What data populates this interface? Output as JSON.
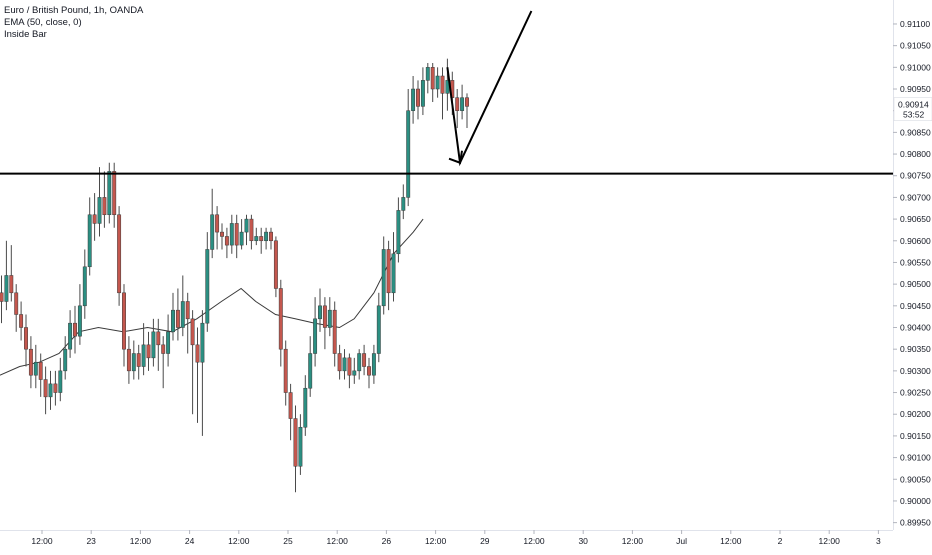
{
  "header": {
    "symbol_line": "Euro / British Pound, 1h, OANDA",
    "indicator_line": "EMA (50, close, 0)",
    "study_line": "Inside Bar"
  },
  "colors": {
    "up": "#26a69a",
    "down": "#ef5350",
    "up_body": "#2b8f82",
    "down_body": "#c4574e",
    "ema": "#3a3a3a",
    "level": "#000000",
    "axis_text": "#131722",
    "axis_line": "#e0e3eb"
  },
  "chart_data": {
    "type": "candlestick",
    "title": "Euro / British Pound, 1h, OANDA",
    "ylim": [
      0.8993,
      0.9112
    ],
    "x_ticks": [
      {
        "x": 0,
        "label": "12:00"
      },
      {
        "x": 1,
        "label": "23"
      },
      {
        "x": 2,
        "label": "12:00"
      },
      {
        "x": 3,
        "label": "24"
      },
      {
        "x": 4,
        "label": "12:00"
      },
      {
        "x": 5,
        "label": "25"
      },
      {
        "x": 6,
        "label": "12:00"
      },
      {
        "x": 7,
        "label": "26"
      },
      {
        "x": 8,
        "label": "12:00"
      },
      {
        "x": 9,
        "label": "29"
      },
      {
        "x": 10,
        "label": "12:00"
      },
      {
        "x": 11,
        "label": "30"
      },
      {
        "x": 12,
        "label": "12:00"
      },
      {
        "x": 13,
        "label": "Jul"
      },
      {
        "x": 14,
        "label": "12:00"
      },
      {
        "x": 15,
        "label": "2"
      },
      {
        "x": 16,
        "label": "12:00"
      },
      {
        "x": 17,
        "label": "3"
      }
    ],
    "y_ticks": [
      "0.91100",
      "0.91050",
      "0.91000",
      "0.90950",
      "0.90900",
      "0.90850",
      "0.90800",
      "0.90750",
      "0.90700",
      "0.90650",
      "0.90600",
      "0.90550",
      "0.90500",
      "0.90450",
      "0.90400",
      "0.90350",
      "0.90300",
      "0.90250",
      "0.90200",
      "0.90150",
      "0.90100",
      "0.90050",
      "0.90000",
      "0.89950"
    ],
    "current_price": {
      "value": 0.90914,
      "label": "0.90914",
      "countdown": "53:52"
    },
    "level": {
      "value": 0.90755,
      "label": "0.90755"
    },
    "ema": [
      [
        0,
        0.9029
      ],
      [
        0.4,
        0.9031
      ],
      [
        0.8,
        0.9032
      ],
      [
        1.2,
        0.9034
      ],
      [
        1.6,
        0.9039
      ],
      [
        2.0,
        0.904
      ],
      [
        2.5,
        0.9039
      ],
      [
        3.0,
        0.904
      ],
      [
        3.5,
        0.9039
      ],
      [
        4.0,
        0.9042
      ],
      [
        4.5,
        0.9046
      ],
      [
        4.9,
        0.9049
      ],
      [
        5.2,
        0.9046
      ],
      [
        5.6,
        0.9043
      ],
      [
        6.0,
        0.9042
      ],
      [
        6.4,
        0.9041
      ],
      [
        6.9,
        0.904
      ],
      [
        7.2,
        0.9042
      ],
      [
        7.6,
        0.9048
      ],
      [
        8.0,
        0.9057
      ],
      [
        8.4,
        0.9062
      ],
      [
        8.6,
        0.9065
      ]
    ],
    "projection": [
      [
        8.15,
        0.91
      ],
      [
        9.35,
        0.9078
      ],
      [
        10.8,
        0.9113
      ]
    ],
    "candles": [
      [
        0.9048,
        0.9046,
        0.9052,
        0.9041
      ],
      [
        0.9046,
        0.9052,
        0.906,
        0.9044
      ],
      [
        0.9052,
        0.9048,
        0.9059,
        0.9046
      ],
      [
        0.9048,
        0.9043,
        0.905,
        0.9039
      ],
      [
        0.9043,
        0.904,
        0.9046,
        0.9037
      ],
      [
        0.904,
        0.9035,
        0.9043,
        0.9031
      ],
      [
        0.9035,
        0.9029,
        0.9038,
        0.9026
      ],
      [
        0.9029,
        0.9032,
        0.9036,
        0.9026
      ],
      [
        0.9032,
        0.9028,
        0.9034,
        0.9024
      ],
      [
        0.9028,
        0.9024,
        0.9031,
        0.902
      ],
      [
        0.9024,
        0.9027,
        0.903,
        0.9021
      ],
      [
        0.9027,
        0.9025,
        0.903,
        0.9022
      ],
      [
        0.9025,
        0.903,
        0.9033,
        0.9023
      ],
      [
        0.903,
        0.9035,
        0.9038,
        0.9028
      ],
      [
        0.9035,
        0.9041,
        0.9044,
        0.9033
      ],
      [
        0.9041,
        0.9038,
        0.9045,
        0.9034
      ],
      [
        0.9038,
        0.9045,
        0.905,
        0.9036
      ],
      [
        0.9045,
        0.9054,
        0.9058,
        0.9042
      ],
      [
        0.9054,
        0.9066,
        0.907,
        0.9052
      ],
      [
        0.9066,
        0.9064,
        0.9071,
        0.906
      ],
      [
        0.9064,
        0.907,
        0.9077,
        0.9061
      ],
      [
        0.907,
        0.9066,
        0.9076,
        0.9063
      ],
      [
        0.9066,
        0.9076,
        0.9078,
        0.9064
      ],
      [
        0.9076,
        0.9066,
        0.9078,
        0.9063
      ],
      [
        0.9066,
        0.9048,
        0.9068,
        0.9045
      ],
      [
        0.9048,
        0.9035,
        0.905,
        0.9031
      ],
      [
        0.9035,
        0.903,
        0.9038,
        0.9027
      ],
      [
        0.903,
        0.9034,
        0.9037,
        0.9028
      ],
      [
        0.9034,
        0.9031,
        0.9036,
        0.9028
      ],
      [
        0.9031,
        0.9036,
        0.9041,
        0.9029
      ],
      [
        0.9036,
        0.9033,
        0.9039,
        0.903
      ],
      [
        0.9033,
        0.9039,
        0.9042,
        0.9031
      ],
      [
        0.9039,
        0.9036,
        0.9042,
        0.903
      ],
      [
        0.9036,
        0.9034,
        0.9038,
        0.9026
      ],
      [
        0.9034,
        0.9039,
        0.9043,
        0.9031
      ],
      [
        0.9039,
        0.9044,
        0.9048,
        0.9037
      ],
      [
        0.9044,
        0.904,
        0.9049,
        0.9037
      ],
      [
        0.904,
        0.9046,
        0.9052,
        0.9038
      ],
      [
        0.9046,
        0.9042,
        0.9048,
        0.9034
      ],
      [
        0.9042,
        0.9036,
        0.9044,
        0.902
      ],
      [
        0.9036,
        0.9032,
        0.904,
        0.9018
      ],
      [
        0.9032,
        0.9041,
        0.9044,
        0.9015
      ],
      [
        0.9041,
        0.9058,
        0.9062,
        0.9039
      ],
      [
        0.9058,
        0.9066,
        0.9072,
        0.9056
      ],
      [
        0.9066,
        0.9062,
        0.9068,
        0.9058
      ],
      [
        0.9062,
        0.9061,
        0.9064,
        0.9058
      ],
      [
        0.9061,
        0.9059,
        0.9063,
        0.9056
      ],
      [
        0.9059,
        0.9064,
        0.9066,
        0.9057
      ],
      [
        0.9064,
        0.9059,
        0.9066,
        0.9056
      ],
      [
        0.9059,
        0.9062,
        0.9065,
        0.9058
      ],
      [
        0.9062,
        0.9065,
        0.9066,
        0.9059
      ],
      [
        0.9065,
        0.906,
        0.9066,
        0.9058
      ],
      [
        0.906,
        0.9061,
        0.9063,
        0.9059
      ],
      [
        0.9061,
        0.906,
        0.9063,
        0.9057
      ],
      [
        0.906,
        0.9062,
        0.9063,
        0.9058
      ],
      [
        0.9062,
        0.906,
        0.9063,
        0.9058
      ],
      [
        0.906,
        0.9049,
        0.9061,
        0.9047
      ],
      [
        0.9049,
        0.9035,
        0.9051,
        0.9031
      ],
      [
        0.9035,
        0.9025,
        0.9037,
        0.9022
      ],
      [
        0.9025,
        0.9019,
        0.9027,
        0.9014
      ],
      [
        0.9019,
        0.9008,
        0.9022,
        0.9002
      ],
      [
        0.9008,
        0.9017,
        0.902,
        0.9006
      ],
      [
        0.9017,
        0.9026,
        0.9029,
        0.9015
      ],
      [
        0.9026,
        0.9034,
        0.9038,
        0.9024
      ],
      [
        0.9034,
        0.9042,
        0.9047,
        0.9031
      ],
      [
        0.9042,
        0.9045,
        0.9049,
        0.9039
      ],
      [
        0.9045,
        0.904,
        0.9047,
        0.9035
      ],
      [
        0.904,
        0.9044,
        0.9047,
        0.9038
      ],
      [
        0.9044,
        0.9034,
        0.9046,
        0.9031
      ],
      [
        0.9034,
        0.903,
        0.9036,
        0.9028
      ],
      [
        0.903,
        0.9033,
        0.9035,
        0.9028
      ],
      [
        0.9033,
        0.9029,
        0.9034,
        0.9026
      ],
      [
        0.9029,
        0.903,
        0.9033,
        0.9027
      ],
      [
        0.903,
        0.9034,
        0.9035,
        0.9028
      ],
      [
        0.9034,
        0.9031,
        0.9036,
        0.9029
      ],
      [
        0.9031,
        0.9029,
        0.9033,
        0.9026
      ],
      [
        0.9029,
        0.9034,
        0.9036,
        0.9027
      ],
      [
        0.9034,
        0.9045,
        0.9048,
        0.9032
      ],
      [
        0.9045,
        0.9058,
        0.9061,
        0.9043
      ],
      [
        0.9058,
        0.9048,
        0.906,
        0.9044
      ],
      [
        0.9048,
        0.9057,
        0.9062,
        0.9046
      ],
      [
        0.9057,
        0.9067,
        0.907,
        0.9055
      ],
      [
        0.9067,
        0.907,
        0.9073,
        0.9065
      ],
      [
        0.907,
        0.909,
        0.9095,
        0.9068
      ],
      [
        0.909,
        0.9095,
        0.9098,
        0.9087
      ],
      [
        0.9095,
        0.9091,
        0.9097,
        0.9088
      ],
      [
        0.9091,
        0.9097,
        0.91,
        0.9089
      ],
      [
        0.9097,
        0.91,
        0.9101,
        0.9094
      ],
      [
        0.91,
        0.9095,
        0.9101,
        0.9092
      ],
      [
        0.9095,
        0.9098,
        0.91,
        0.9093
      ],
      [
        0.9098,
        0.9094,
        0.91,
        0.9088
      ],
      [
        0.9094,
        0.9097,
        0.9102,
        0.909
      ],
      [
        0.9097,
        0.9093,
        0.9099,
        0.9089
      ],
      [
        0.9093,
        0.909,
        0.9095,
        0.9086
      ],
      [
        0.909,
        0.9093,
        0.9096,
        0.9088
      ],
      [
        0.9093,
        0.9091,
        0.9094,
        0.9086
      ]
    ]
  }
}
